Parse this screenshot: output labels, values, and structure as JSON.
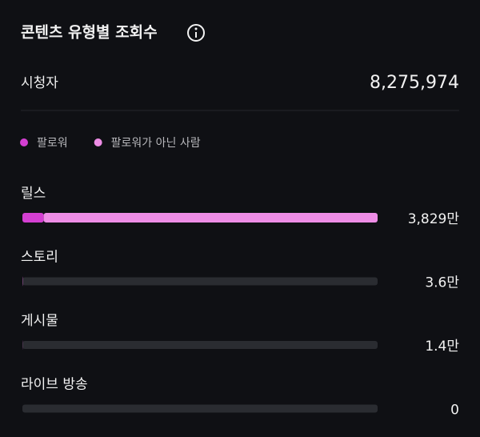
{
  "chart_data": {
    "type": "bar",
    "orientation": "horizontal",
    "stacked": true,
    "title": "콘텐츠 유형별 조회수",
    "metric_label": "시청자",
    "metric_value": "8,275,974",
    "categories": [
      "릴스",
      "스토리",
      "게시물",
      "라이브 방송"
    ],
    "series": [
      {
        "name": "팔로워",
        "color": "#d43fd2",
        "values": [
          2300000,
          20000,
          8000,
          0
        ]
      },
      {
        "name": "팔로워가 아닌 사람",
        "color": "#ee8de6",
        "values": [
          35990000,
          16000,
          6000,
          0
        ]
      }
    ],
    "value_labels": [
      "3,829만",
      "3.6만",
      "1.4만",
      "0"
    ],
    "xlim": [
      0,
      38290000
    ]
  }
}
